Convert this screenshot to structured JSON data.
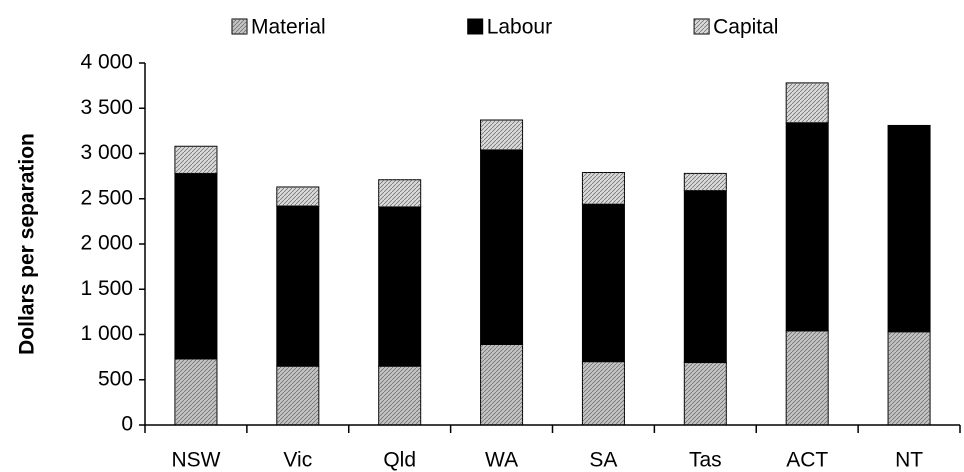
{
  "chart_data": {
    "type": "stacked_bar",
    "y_label": "Dollars per separation",
    "categories": [
      "NSW",
      "Vic",
      "Qld",
      "WA",
      "SA",
      "Tas",
      "ACT",
      "NT"
    ],
    "series": [
      {
        "name": "Material",
        "color": "#c4c4c4",
        "values": [
          730,
          650,
          650,
          890,
          700,
          690,
          1040,
          1030
        ]
      },
      {
        "name": "Labour",
        "color": "#000000",
        "values": [
          2050,
          1770,
          1760,
          2150,
          1740,
          1900,
          2300,
          2280
        ]
      },
      {
        "name": "Capital",
        "color": "#dadada",
        "values": [
          300,
          210,
          300,
          330,
          350,
          190,
          440,
          0
        ]
      }
    ],
    "ylim": [
      0,
      4000
    ],
    "yticks": [
      0,
      500,
      {
        "value": 1000,
        "label": "1 000"
      },
      {
        "value": 1500,
        "label": "1 500"
      },
      {
        "value": 2000,
        "label": "2 000"
      },
      {
        "value": 2500,
        "label": "2 500"
      },
      {
        "value": 3000,
        "label": "3 000"
      },
      {
        "value": 3500,
        "label": "3 500"
      },
      {
        "value": 4000,
        "label": "4 000"
      }
    ]
  }
}
